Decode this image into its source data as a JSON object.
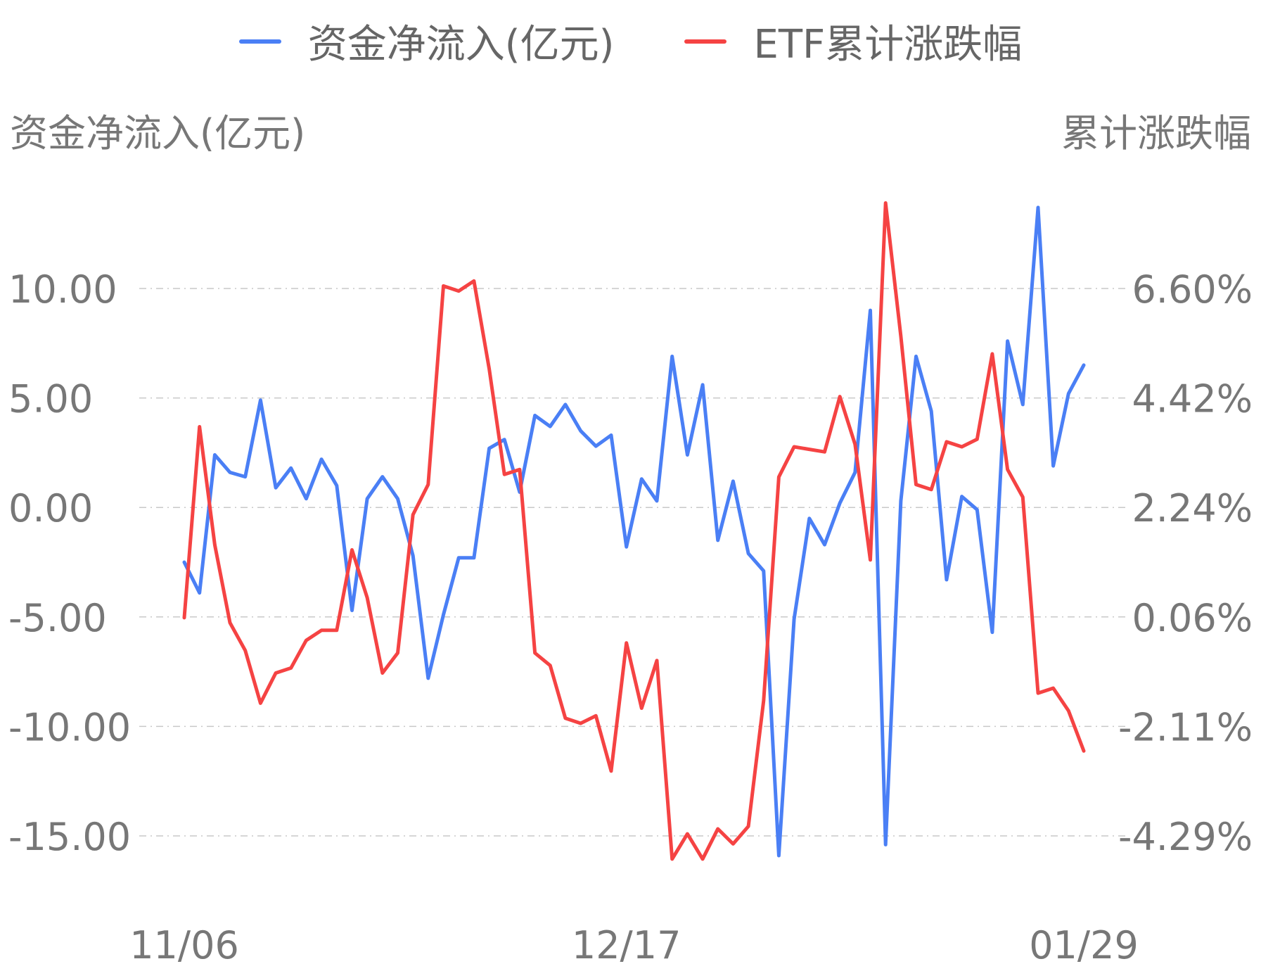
{
  "legend": {
    "items": [
      {
        "label": "资金净流入(亿元)",
        "color": "#4a7ff5"
      },
      {
        "label": "ETF累计涨跌幅",
        "color": "#f54343"
      }
    ]
  },
  "axes": {
    "left_title": "资金净流入(亿元)",
    "right_title": "累计涨跌幅"
  },
  "chart_data": {
    "type": "line",
    "x_ticks": [
      "11/06",
      "12/17",
      "01/29"
    ],
    "y_left": {
      "range": [
        -15,
        10
      ],
      "ticks": [
        "10.00",
        "5.00",
        "0.00",
        "-5.00",
        "-10.00",
        "-15.00"
      ]
    },
    "y_right": {
      "ticks": [
        "6.60%",
        "4.42%",
        "2.24%",
        "0.06%",
        "-2.11%",
        "-4.29%"
      ]
    },
    "grid": true,
    "legend_position": "top",
    "series": [
      {
        "name": "资金净流入(亿元)",
        "axis": "left",
        "color": "#4a7ff5",
        "values": [
          -2.5,
          -3.9,
          2.4,
          1.6,
          1.4,
          4.9,
          0.9,
          1.8,
          0.4,
          2.2,
          1.0,
          -4.7,
          0.4,
          1.4,
          0.4,
          -2.2,
          -7.8,
          -4.9,
          -2.3,
          -2.3,
          2.7,
          3.1,
          0.7,
          4.2,
          3.7,
          4.7,
          3.5,
          2.8,
          3.3,
          -1.8,
          1.3,
          0.3,
          6.9,
          2.4,
          5.6,
          -1.5,
          1.2,
          -2.1,
          -2.9,
          -15.9,
          -5.1,
          -0.5,
          -1.7,
          0.2,
          1.6,
          9.0,
          -15.4,
          0.3,
          6.9,
          4.4,
          -3.3,
          0.5,
          -0.1,
          -5.7,
          7.6,
          4.7,
          13.7,
          1.9,
          5.2,
          6.5
        ]
      },
      {
        "name": "ETF累计涨跌幅",
        "axis": "right",
        "color": "#f54343",
        "values": [
          0.05,
          3.85,
          1.5,
          -0.05,
          -0.6,
          -1.65,
          -1.05,
          -0.95,
          -0.4,
          -0.2,
          -0.2,
          1.4,
          0.45,
          -1.05,
          -0.65,
          2.1,
          2.7,
          6.65,
          6.55,
          6.75,
          5.0,
          2.9,
          3.0,
          -0.65,
          -0.9,
          -1.95,
          -2.05,
          -1.9,
          -3.0,
          -0.45,
          -1.75,
          -0.8,
          -4.75,
          -4.25,
          -4.75,
          -4.15,
          -4.45,
          -4.1,
          -1.6,
          2.85,
          3.45,
          3.4,
          3.35,
          4.45,
          3.5,
          1.2,
          8.3,
          5.65,
          2.7,
          2.6,
          3.55,
          3.45,
          3.6,
          5.3,
          3.0,
          2.45,
          -1.45,
          -1.35,
          -1.8,
          -2.6
        ]
      }
    ]
  }
}
